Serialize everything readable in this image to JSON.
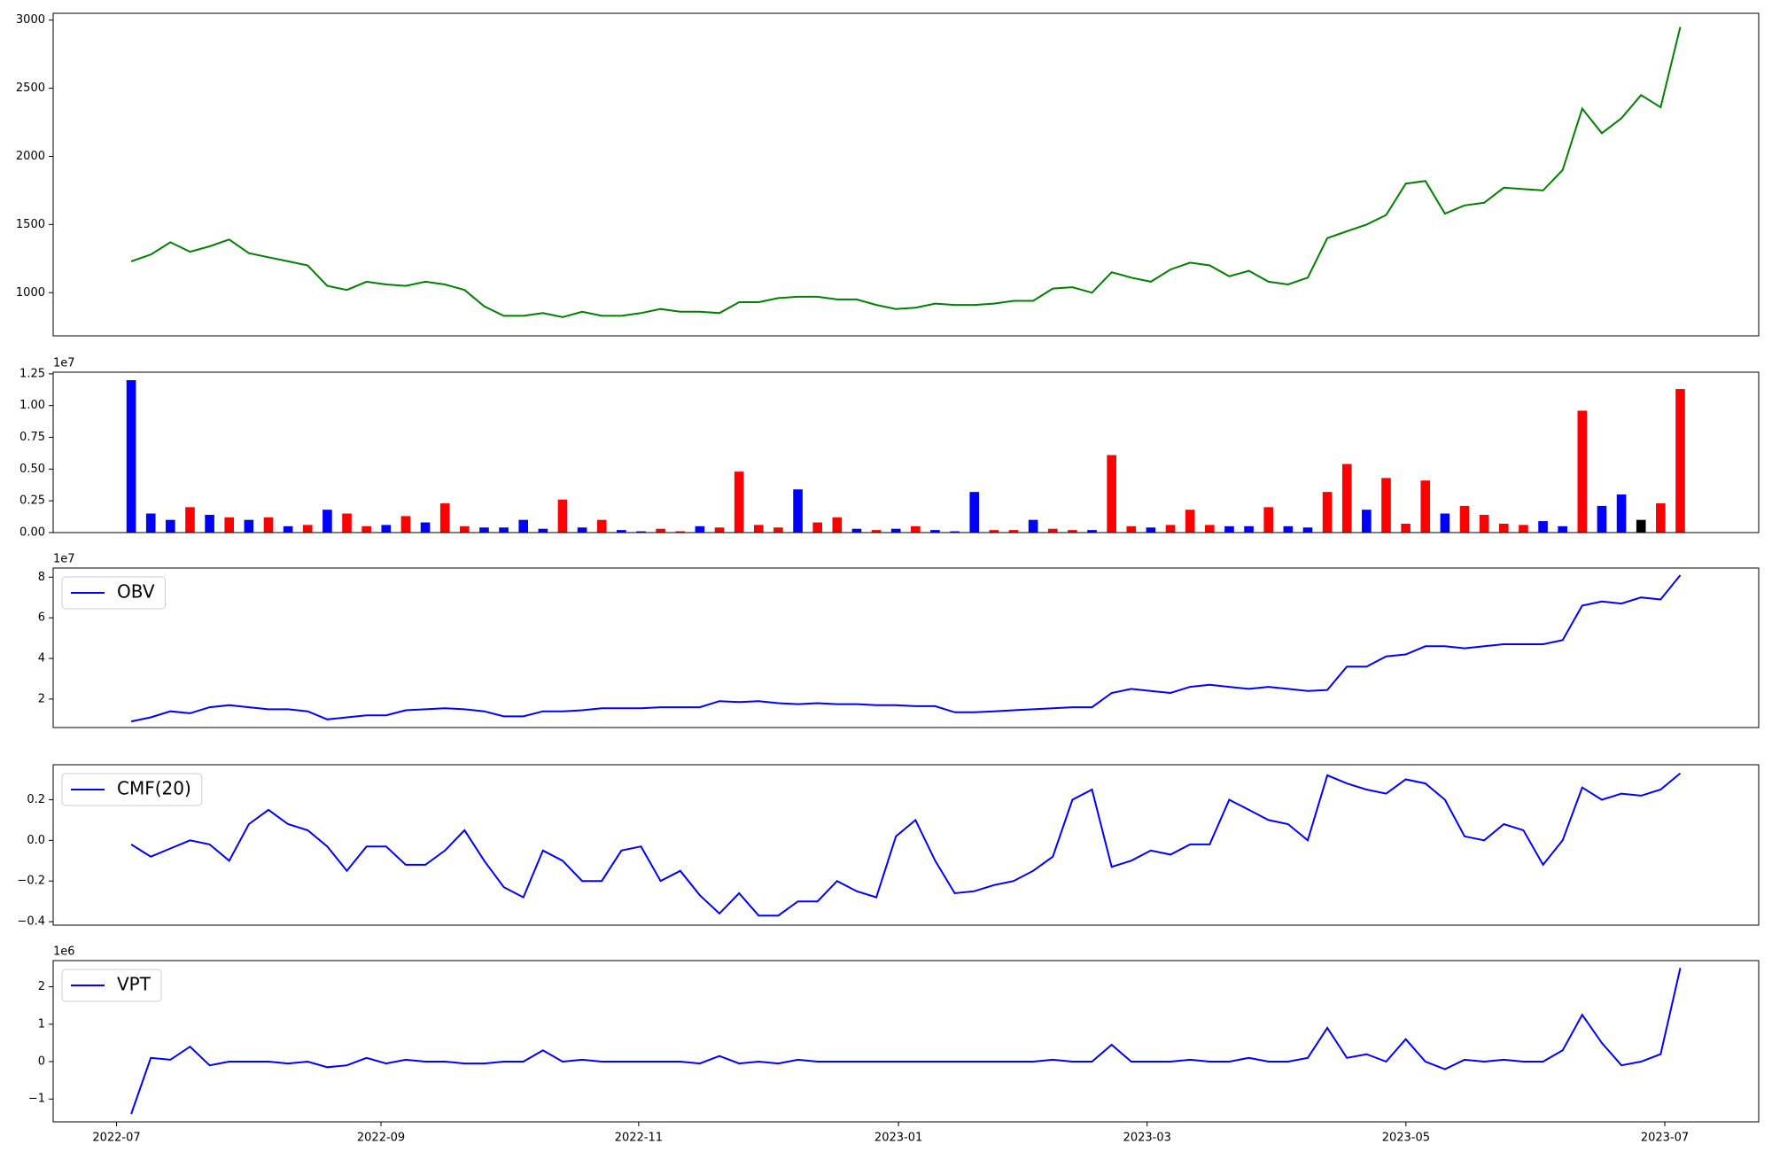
{
  "chart_data": [
    {
      "type": "line",
      "color": "green",
      "xlim": [
        -3.98,
        83.0
      ],
      "ylim": [
        683,
        3050
      ],
      "yticks": [
        1000,
        1500,
        2000,
        2500,
        3000
      ],
      "values": [
        1230,
        1280,
        1370,
        1300,
        1340,
        1390,
        1290,
        1260,
        1230,
        1200,
        1050,
        1020,
        1080,
        1060,
        1050,
        1080,
        1060,
        1020,
        900,
        830,
        830,
        850,
        820,
        860,
        830,
        830,
        850,
        880,
        860,
        860,
        850,
        930,
        930,
        960,
        970,
        970,
        950,
        950,
        910,
        880,
        890,
        920,
        910,
        910,
        920,
        940,
        940,
        1030,
        1040,
        1000,
        1150,
        1110,
        1080,
        1170,
        1220,
        1200,
        1120,
        1160,
        1080,
        1060,
        1110,
        1400,
        1450,
        1500,
        1570,
        1800,
        1820,
        1580,
        1640,
        1660,
        1770,
        1760,
        1750,
        1900,
        2350,
        2170,
        2280,
        2450,
        2360,
        2950
      ]
    },
    {
      "type": "bar",
      "xlim": [
        -3.98,
        83.0
      ],
      "ylim": [
        0,
        12630000
      ],
      "offset_label": "1e7",
      "yticks": [
        {
          "value": 0,
          "label": "0.00"
        },
        {
          "value": 2500000,
          "label": "0.25"
        },
        {
          "value": 5000000,
          "label": "0.50"
        },
        {
          "value": 7500000,
          "label": "0.75"
        },
        {
          "value": 10000000,
          "label": "1.00"
        },
        {
          "value": 12500000,
          "label": "1.25"
        }
      ],
      "values": [
        12000000,
        1500000,
        1000000,
        2000000,
        1400000,
        1200000,
        1000000,
        1200000,
        500000,
        600000,
        1800000,
        1500000,
        500000,
        600000,
        1300000,
        800000,
        2300000,
        500000,
        400000,
        400000,
        1000000,
        300000,
        2600000,
        400000,
        1000000,
        200000,
        100000,
        300000,
        100000,
        500000,
        400000,
        4800000,
        600000,
        400000,
        3400000,
        800000,
        1200000,
        300000,
        200000,
        300000,
        500000,
        200000,
        100000,
        3200000,
        200000,
        200000,
        1000000,
        300000,
        200000,
        200000,
        6100000,
        500000,
        400000,
        600000,
        1800000,
        600000,
        500000,
        500000,
        2000000,
        500000,
        400000,
        3200000,
        5400000,
        1800000,
        4300000,
        700000,
        4100000,
        1500000,
        2100000,
        1400000,
        700000,
        600000,
        900000,
        500000,
        9600000,
        2100000,
        3000000,
        1000000,
        2300000,
        11300000
      ],
      "colors": [
        "blue",
        "blue",
        "blue",
        "red",
        "blue",
        "red",
        "blue",
        "red",
        "blue",
        "red",
        "blue",
        "red",
        "red",
        "blue",
        "red",
        "blue",
        "red",
        "red",
        "blue",
        "blue",
        "blue",
        "blue",
        "red",
        "blue",
        "red",
        "blue",
        "blue",
        "red",
        "red",
        "blue",
        "red",
        "red",
        "red",
        "red",
        "blue",
        "red",
        "red",
        "blue",
        "red",
        "blue",
        "red",
        "blue",
        "blue",
        "blue",
        "red",
        "red",
        "blue",
        "red",
        "red",
        "blue",
        "red",
        "red",
        "blue",
        "red",
        "red",
        "red",
        "blue",
        "blue",
        "red",
        "blue",
        "blue",
        "red",
        "red",
        "blue",
        "red",
        "red",
        "red",
        "blue",
        "red",
        "red",
        "red",
        "red",
        "blue",
        "blue",
        "red",
        "blue",
        "blue",
        "black",
        "red",
        "red"
      ]
    },
    {
      "type": "line",
      "xlim": [
        -3.98,
        83.0
      ],
      "ylim": [
        6000000,
        84500000
      ],
      "offset_label": "1e7",
      "legend": "upper left",
      "yticks": [
        {
          "value": 20000000,
          "label": "2"
        },
        {
          "value": 40000000,
          "label": "4"
        },
        {
          "value": 60000000,
          "label": "6"
        },
        {
          "value": 80000000,
          "label": "8"
        }
      ],
      "series": [
        {
          "name": "OBV",
          "color": "blue",
          "values": [
            9000000,
            11000000,
            14000000,
            13000000,
            16000000,
            17000000,
            16000000,
            15000000,
            15000000,
            14000000,
            10000000,
            11000000,
            12000000,
            12000000,
            14500000,
            15000000,
            15500000,
            15000000,
            14000000,
            11500000,
            11500000,
            14000000,
            14000000,
            14500000,
            15500000,
            15500000,
            15500000,
            16000000,
            16000000,
            16000000,
            19000000,
            18500000,
            19000000,
            18000000,
            17500000,
            18000000,
            17500000,
            17500000,
            17000000,
            17000000,
            16500000,
            16500000,
            13500000,
            13500000,
            14000000,
            14500000,
            15000000,
            15500000,
            16000000,
            16000000,
            23000000,
            25000000,
            24000000,
            23000000,
            26000000,
            27000000,
            26000000,
            25000000,
            26000000,
            25000000,
            24000000,
            24500000,
            36000000,
            36000000,
            41000000,
            42000000,
            46000000,
            46000000,
            45000000,
            46000000,
            47000000,
            47000000,
            47000000,
            49000000,
            66000000,
            68000000,
            67000000,
            70000000,
            69000000,
            81000000
          ]
        }
      ]
    },
    {
      "type": "line",
      "xlim": [
        -3.98,
        83.0
      ],
      "ylim": [
        -0.417,
        0.372
      ],
      "legend": "upper left",
      "yticks": [
        {
          "value": -0.4,
          "label": "−0.4"
        },
        {
          "value": -0.2,
          "label": "−0.2"
        },
        {
          "value": 0,
          "label": "0.0"
        },
        0.2
      ],
      "series": [
        {
          "name": "CMF(20)",
          "color": "blue",
          "values": [
            -0.02,
            -0.08,
            -0.04,
            0.0,
            -0.02,
            -0.1,
            0.08,
            0.15,
            0.08,
            0.05,
            -0.03,
            -0.15,
            -0.03,
            -0.03,
            -0.12,
            -0.12,
            -0.05,
            0.05,
            -0.1,
            -0.23,
            -0.28,
            -0.05,
            -0.1,
            -0.2,
            -0.2,
            -0.05,
            -0.03,
            -0.2,
            -0.15,
            -0.27,
            -0.36,
            -0.26,
            -0.37,
            -0.37,
            -0.3,
            -0.3,
            -0.2,
            -0.25,
            -0.28,
            0.02,
            0.1,
            -0.1,
            -0.26,
            -0.25,
            -0.22,
            -0.2,
            -0.15,
            -0.08,
            0.2,
            0.25,
            -0.13,
            -0.1,
            -0.05,
            -0.07,
            -0.02,
            -0.02,
            0.2,
            0.15,
            0.1,
            0.08,
            0.0,
            0.32,
            0.28,
            0.25,
            0.23,
            0.3,
            0.28,
            0.2,
            0.02,
            0.0,
            0.08,
            0.05,
            -0.12,
            0.0,
            0.26,
            0.2,
            0.23,
            0.22,
            0.25,
            0.33
          ]
        }
      ]
    },
    {
      "type": "line",
      "xlim": [
        -3.98,
        83.0
      ],
      "ylim": [
        -1610000,
        2700000
      ],
      "offset_label": "1e6",
      "legend": "upper left",
      "yticks": [
        {
          "value": -1000000,
          "label": "−1"
        },
        0,
        {
          "value": 1000000,
          "label": "1"
        },
        {
          "value": 2000000,
          "label": "2"
        }
      ],
      "xticks": [
        {
          "value": -0.75,
          "label": "2022-07"
        },
        {
          "value": 12.74,
          "label": "2022-09"
        },
        {
          "value": 25.88,
          "label": "2022-11"
        },
        {
          "value": 39.13,
          "label": "2023-01"
        },
        {
          "value": 51.81,
          "label": "2023-03"
        },
        {
          "value": 65.01,
          "label": "2023-05"
        },
        {
          "value": 78.21,
          "label": "2023-07"
        }
      ],
      "series": [
        {
          "name": "VPT",
          "color": "blue",
          "values": [
            -1400000,
            100000,
            50000,
            400000,
            -100000,
            0,
            0,
            0,
            -50000,
            0,
            -150000,
            -100000,
            100000,
            -50000,
            50000,
            0,
            0,
            -50000,
            -50000,
            0,
            0,
            300000,
            0,
            50000,
            0,
            0,
            0,
            0,
            0,
            -50000,
            150000,
            -50000,
            0,
            -50000,
            50000,
            0,
            0,
            0,
            0,
            0,
            0,
            0,
            0,
            0,
            0,
            0,
            0,
            50000,
            0,
            0,
            450000,
            0,
            0,
            0,
            50000,
            0,
            0,
            100000,
            0,
            0,
            100000,
            900000,
            100000,
            200000,
            0,
            600000,
            0,
            -200000,
            50000,
            0,
            50000,
            0,
            0,
            300000,
            1250000,
            500000,
            -100000,
            0,
            200000,
            2500000
          ]
        }
      ]
    }
  ]
}
